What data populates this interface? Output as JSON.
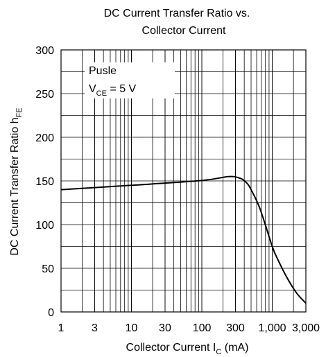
{
  "chart_data": {
    "type": "line",
    "title": [
      "DC Current Transfer Ratio vs.",
      "Collector Current"
    ],
    "x_label": {
      "main": "Collector Current  I",
      "sub": "C",
      "unit": "  (mA)"
    },
    "y_label": {
      "main": "DC Current Transfer Ratio  h",
      "sub": "FE"
    },
    "annotation": {
      "line1": "Pusle",
      "v": "V",
      "sub": "CE",
      "rest": " = 5 V"
    },
    "x": [
      1,
      10,
      100,
      240,
      350,
      430,
      500,
      670,
      1000,
      1200,
      1600,
      2200,
      3000
    ],
    "values": [
      140,
      145,
      150.5,
      155,
      153,
      148,
      140,
      118,
      75,
      60,
      40,
      22,
      10
    ],
    "color": "#000000",
    "xscale": "log",
    "xlim": [
      1,
      3000
    ],
    "xticks": [
      1,
      3,
      10,
      30,
      100,
      300,
      {
        "value": 1000,
        "label": "1,000"
      },
      {
        "value": 3000,
        "label": "3,000"
      }
    ],
    "ylim": [
      0,
      300
    ],
    "yticks": [
      0,
      50,
      100,
      150,
      200,
      250,
      300
    ],
    "grid": true,
    "minor_grid": true
  }
}
